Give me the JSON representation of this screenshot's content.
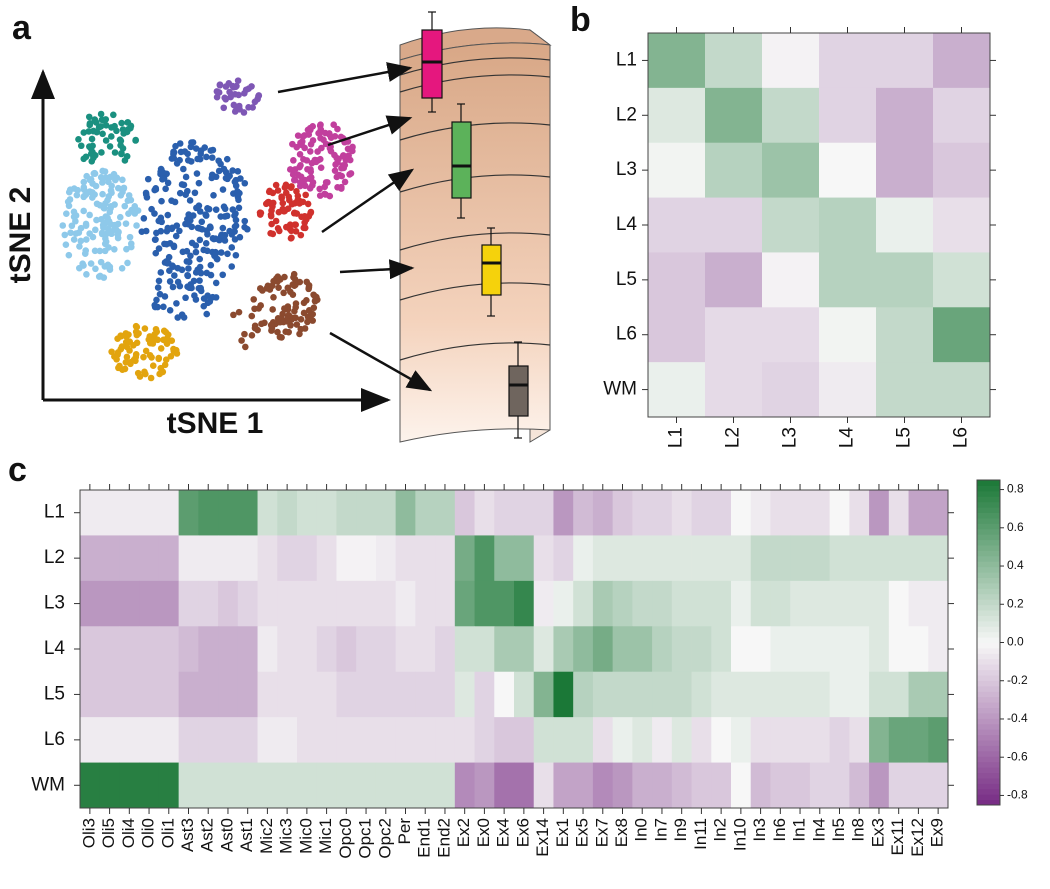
{
  "panel_a": {
    "label": "a",
    "x_axis_label": "tSNE 1",
    "y_axis_label": "tSNE 2"
  },
  "chart_data": [
    {
      "type": "heatmap",
      "panel_label": "b",
      "rows": [
        "L1",
        "L2",
        "L3",
        "L4",
        "L5",
        "L6",
        "WM"
      ],
      "columns": [
        "L1",
        "L2",
        "L3",
        "L4",
        "L5",
        "L6"
      ],
      "values": [
        [
          0.45,
          0.2,
          -0.02,
          -0.15,
          -0.15,
          -0.3
        ],
        [
          0.1,
          0.45,
          0.2,
          -0.15,
          -0.3,
          -0.15
        ],
        [
          0.02,
          0.25,
          0.35,
          0.0,
          -0.3,
          -0.2
        ],
        [
          -0.15,
          -0.15,
          0.2,
          0.25,
          0.05,
          -0.1
        ],
        [
          -0.2,
          -0.3,
          -0.02,
          0.25,
          0.25,
          0.15
        ],
        [
          -0.2,
          -0.12,
          -0.12,
          0.02,
          0.2,
          0.55
        ],
        [
          0.05,
          -0.12,
          -0.15,
          -0.05,
          0.2,
          0.2
        ]
      ],
      "zlim": [
        -0.85,
        0.85
      ],
      "colormap": [
        "#762a83",
        "#f7f7f7",
        "#1b7837"
      ]
    },
    {
      "type": "heatmap",
      "panel_label": "c",
      "rows": [
        "L1",
        "L2",
        "L3",
        "L4",
        "L5",
        "L6",
        "WM"
      ],
      "columns": [
        "Oli3",
        "Oli5",
        "Oli4",
        "Oli0",
        "Oli1",
        "Ast3",
        "Ast2",
        "Ast0",
        "Ast1",
        "Mic2",
        "Mic3",
        "Mic0",
        "Mic1",
        "Opc0",
        "Opc1",
        "Opc2",
        "Per",
        "End1",
        "End2",
        "Ex2",
        "Ex0",
        "Ex4",
        "Ex6",
        "Ex14",
        "Ex1",
        "Ex5",
        "Ex7",
        "Ex8",
        "In0",
        "In7",
        "In9",
        "In11",
        "In2",
        "In10",
        "In3",
        "In6",
        "In1",
        "In4",
        "In5",
        "In8",
        "Ex3",
        "Ex11",
        "Ex12",
        "Ex9"
      ],
      "values": [
        [
          -0.05,
          -0.05,
          -0.05,
          -0.05,
          -0.05,
          0.6,
          0.65,
          0.65,
          0.65,
          0.15,
          0.2,
          0.15,
          0.15,
          0.2,
          0.2,
          0.2,
          0.4,
          0.25,
          0.25,
          -0.2,
          -0.1,
          -0.15,
          -0.15,
          -0.15,
          -0.4,
          -0.25,
          -0.3,
          -0.2,
          -0.15,
          -0.15,
          -0.1,
          -0.15,
          -0.15,
          0.0,
          -0.05,
          -0.1,
          -0.1,
          -0.1,
          0.0,
          -0.1,
          -0.4,
          -0.1,
          -0.35,
          -0.35
        ],
        [
          -0.3,
          -0.3,
          -0.3,
          -0.3,
          -0.3,
          -0.05,
          -0.05,
          -0.05,
          -0.05,
          -0.1,
          -0.15,
          -0.15,
          -0.1,
          -0.02,
          -0.02,
          -0.05,
          -0.1,
          -0.1,
          -0.1,
          0.5,
          0.65,
          0.4,
          0.4,
          -0.1,
          -0.15,
          0.05,
          0.1,
          0.1,
          0.1,
          0.1,
          0.1,
          0.1,
          0.1,
          0.1,
          0.2,
          0.2,
          0.2,
          0.2,
          0.15,
          0.15,
          0.15,
          0.15,
          0.15,
          0.15
        ],
        [
          -0.4,
          -0.4,
          -0.4,
          -0.4,
          -0.4,
          -0.15,
          -0.15,
          -0.2,
          -0.15,
          -0.1,
          -0.1,
          -0.1,
          -0.1,
          -0.1,
          -0.1,
          -0.1,
          -0.05,
          -0.1,
          -0.1,
          0.55,
          0.65,
          0.65,
          0.75,
          -0.05,
          0.05,
          0.15,
          0.3,
          0.25,
          0.2,
          0.2,
          0.15,
          0.15,
          0.15,
          0.05,
          0.15,
          0.15,
          0.1,
          0.1,
          0.1,
          0.1,
          0.1,
          0.0,
          -0.05,
          -0.05
        ],
        [
          -0.2,
          -0.2,
          -0.2,
          -0.2,
          -0.2,
          -0.25,
          -0.3,
          -0.3,
          -0.3,
          -0.05,
          -0.1,
          -0.1,
          -0.15,
          -0.2,
          -0.15,
          -0.15,
          -0.1,
          -0.1,
          -0.15,
          0.15,
          0.15,
          0.3,
          0.3,
          0.1,
          0.3,
          0.4,
          0.5,
          0.35,
          0.35,
          0.25,
          0.2,
          0.2,
          0.15,
          0.0,
          0.0,
          0.05,
          0.05,
          0.05,
          0.05,
          0.05,
          0.1,
          0.0,
          0.0,
          -0.05
        ],
        [
          -0.2,
          -0.2,
          -0.2,
          -0.2,
          -0.2,
          -0.3,
          -0.3,
          -0.3,
          -0.3,
          -0.1,
          -0.1,
          -0.1,
          -0.1,
          -0.15,
          -0.15,
          -0.15,
          -0.15,
          -0.15,
          -0.15,
          0.1,
          -0.15,
          0.0,
          0.15,
          0.45,
          0.85,
          0.25,
          0.2,
          0.2,
          0.2,
          0.2,
          0.2,
          0.15,
          0.1,
          0.1,
          0.1,
          0.1,
          0.1,
          0.1,
          0.05,
          0.05,
          0.15,
          0.15,
          0.3,
          0.3
        ],
        [
          -0.05,
          -0.05,
          -0.05,
          -0.05,
          -0.05,
          -0.15,
          -0.15,
          -0.15,
          -0.15,
          -0.05,
          -0.05,
          -0.1,
          -0.1,
          -0.1,
          -0.1,
          -0.1,
          -0.1,
          -0.1,
          -0.1,
          -0.1,
          -0.15,
          -0.2,
          -0.2,
          0.15,
          0.15,
          0.15,
          -0.1,
          0.05,
          0.1,
          -0.05,
          0.1,
          -0.1,
          0.0,
          0.05,
          -0.1,
          -0.1,
          -0.1,
          -0.1,
          -0.15,
          -0.1,
          0.45,
          0.55,
          0.55,
          0.6
        ],
        [
          0.8,
          0.8,
          0.8,
          0.8,
          0.8,
          0.15,
          0.15,
          0.15,
          0.15,
          0.15,
          0.15,
          0.15,
          0.15,
          0.15,
          0.15,
          0.15,
          0.15,
          0.15,
          0.15,
          -0.45,
          -0.4,
          -0.55,
          -0.55,
          -0.1,
          -0.35,
          -0.35,
          -0.45,
          -0.4,
          -0.3,
          -0.3,
          -0.25,
          -0.2,
          -0.2,
          0.0,
          -0.25,
          -0.2,
          -0.2,
          -0.15,
          -0.15,
          -0.25,
          -0.4,
          -0.15,
          -0.15,
          -0.15
        ]
      ],
      "zlim": [
        -0.85,
        0.85
      ],
      "colormap": [
        "#762a83",
        "#f7f7f7",
        "#1b7837"
      ],
      "zticks": [
        -0.8,
        -0.6,
        -0.4,
        -0.2,
        {
          "value": 0,
          "label": "0.0"
        },
        0.2,
        0.4,
        0.6,
        0.8
      ]
    }
  ]
}
